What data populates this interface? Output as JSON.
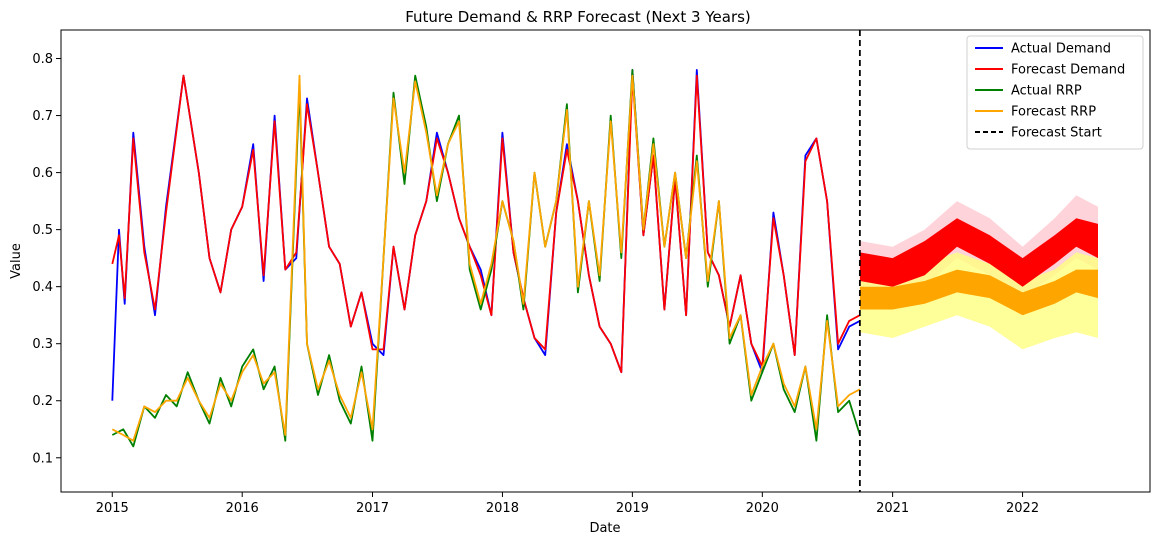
{
  "chart_data": {
    "type": "line",
    "title": "Future Demand & RRP Forecast (Next 3 Years)",
    "xlabel": "Date",
    "ylabel": "Value",
    "xlim": [
      "2014-08-10",
      "2022-12-25"
    ],
    "ylim": [
      0.04,
      0.85
    ],
    "x_ticks": [
      "2015",
      "2016",
      "2017",
      "2018",
      "2019",
      "2020",
      "2021",
      "2022"
    ],
    "y_ticks": [
      "0.1",
      "0.2",
      "0.3",
      "0.4",
      "0.5",
      "0.6",
      "0.7",
      "0.8"
    ],
    "grid": false,
    "legend_position": "top-right",
    "forecast_start": "2020-10-01",
    "colors": {
      "actual_demand": "#0000ff",
      "forecast_demand": "#ff0000",
      "actual_rrp": "#008000",
      "forecast_rrp": "#ffa500",
      "forecast_start": "#000000",
      "demand_band": "#ffc0cb",
      "rrp_band": "#ffff80"
    },
    "series": [
      {
        "name": "Actual Demand",
        "color": "#0000ff",
        "x": [
          "2015-01-01",
          "2015-01-20",
          "2015-02-05",
          "2015-03-01",
          "2015-04-01",
          "2015-05-01",
          "2015-06-01",
          "2015-07-20",
          "2015-09-01",
          "2015-10-01",
          "2015-11-01",
          "2015-12-01",
          "2016-01-01",
          "2016-02-01",
          "2016-03-01",
          "2016-04-01",
          "2016-05-01",
          "2016-06-01",
          "2016-07-01",
          "2016-08-01",
          "2016-09-01",
          "2016-10-01",
          "2016-11-01",
          "2016-12-01",
          "2017-01-01",
          "2017-02-01",
          "2017-03-01",
          "2017-04-01",
          "2017-05-01",
          "2017-06-01",
          "2017-07-01",
          "2017-08-01",
          "2017-09-01",
          "2017-10-01",
          "2017-11-01",
          "2017-12-01",
          "2018-01-01",
          "2018-02-01",
          "2018-03-01",
          "2018-04-01",
          "2018-05-01",
          "2018-06-01",
          "2018-07-01",
          "2018-08-01",
          "2018-09-01",
          "2018-10-01",
          "2018-11-01",
          "2018-12-01",
          "2019-01-01",
          "2019-02-01",
          "2019-03-01",
          "2019-04-01",
          "2019-05-01",
          "2019-06-01",
          "2019-07-01",
          "2019-08-01",
          "2019-09-01",
          "2019-10-01",
          "2019-11-01",
          "2019-12-01",
          "2020-01-01",
          "2020-02-01",
          "2020-03-01",
          "2020-04-01",
          "2020-05-01",
          "2020-06-01",
          "2020-07-01",
          "2020-08-01",
          "2020-09-01",
          "2020-10-01"
        ],
        "values": [
          0.2,
          0.5,
          0.37,
          0.67,
          0.47,
          0.35,
          0.54,
          0.77,
          0.6,
          0.45,
          0.39,
          0.5,
          0.54,
          0.65,
          0.41,
          0.7,
          0.43,
          0.45,
          0.73,
          0.6,
          0.47,
          0.44,
          0.33,
          0.39,
          0.3,
          0.28,
          0.47,
          0.36,
          0.49,
          0.55,
          0.67,
          0.6,
          0.52,
          0.47,
          0.43,
          0.35,
          0.67,
          0.46,
          0.38,
          0.31,
          0.28,
          0.53,
          0.65,
          0.55,
          0.42,
          0.33,
          0.3,
          0.25,
          0.78,
          0.49,
          0.63,
          0.36,
          0.59,
          0.35,
          0.78,
          0.46,
          0.42,
          0.33,
          0.42,
          0.3,
          0.25,
          0.53,
          0.42,
          0.28,
          0.63,
          0.66,
          0.55,
          0.29,
          0.33,
          0.34
        ]
      },
      {
        "name": "Forecast Demand",
        "color": "#ff0000",
        "x": [
          "2015-01-01",
          "2015-01-20",
          "2015-02-05",
          "2015-03-01",
          "2015-04-01",
          "2015-05-01",
          "2015-06-01",
          "2015-07-20",
          "2015-09-01",
          "2015-10-01",
          "2015-11-01",
          "2015-12-01",
          "2016-01-01",
          "2016-02-01",
          "2016-03-01",
          "2016-04-01",
          "2016-05-01",
          "2016-06-01",
          "2016-07-01",
          "2016-08-01",
          "2016-09-01",
          "2016-10-01",
          "2016-11-01",
          "2016-12-01",
          "2017-01-01",
          "2017-02-01",
          "2017-03-01",
          "2017-04-01",
          "2017-05-01",
          "2017-06-01",
          "2017-07-01",
          "2017-08-01",
          "2017-09-01",
          "2017-10-01",
          "2017-11-01",
          "2017-12-01",
          "2018-01-01",
          "2018-02-01",
          "2018-03-01",
          "2018-04-01",
          "2018-05-01",
          "2018-06-01",
          "2018-07-01",
          "2018-08-01",
          "2018-09-01",
          "2018-10-01",
          "2018-11-01",
          "2018-12-01",
          "2019-01-01",
          "2019-02-01",
          "2019-03-01",
          "2019-04-01",
          "2019-05-01",
          "2019-06-01",
          "2019-07-01",
          "2019-08-01",
          "2019-09-01",
          "2019-10-01",
          "2019-11-01",
          "2019-12-01",
          "2020-01-01",
          "2020-02-01",
          "2020-03-01",
          "2020-04-01",
          "2020-05-01",
          "2020-06-01",
          "2020-07-01",
          "2020-08-01",
          "2020-09-01",
          "2020-10-01"
        ],
        "values": [
          0.44,
          0.49,
          0.38,
          0.66,
          0.46,
          0.36,
          0.53,
          0.77,
          0.6,
          0.45,
          0.39,
          0.5,
          0.54,
          0.64,
          0.42,
          0.69,
          0.43,
          0.46,
          0.72,
          0.6,
          0.47,
          0.44,
          0.33,
          0.39,
          0.29,
          0.29,
          0.47,
          0.36,
          0.49,
          0.55,
          0.66,
          0.6,
          0.52,
          0.47,
          0.42,
          0.35,
          0.66,
          0.46,
          0.38,
          0.31,
          0.29,
          0.53,
          0.64,
          0.55,
          0.42,
          0.33,
          0.3,
          0.25,
          0.77,
          0.49,
          0.63,
          0.36,
          0.59,
          0.35,
          0.77,
          0.46,
          0.42,
          0.33,
          0.42,
          0.3,
          0.26,
          0.52,
          0.42,
          0.28,
          0.62,
          0.66,
          0.55,
          0.3,
          0.34,
          0.35
        ]
      },
      {
        "name": "Actual RRP",
        "color": "#008000",
        "x": [
          "2015-01-01",
          "2015-02-01",
          "2015-03-01",
          "2015-04-01",
          "2015-05-01",
          "2015-06-01",
          "2015-07-01",
          "2015-08-01",
          "2015-09-01",
          "2015-10-01",
          "2015-11-01",
          "2015-12-01",
          "2016-01-01",
          "2016-02-01",
          "2016-03-01",
          "2016-04-01",
          "2016-05-01",
          "2016-06-10",
          "2016-07-01",
          "2016-08-01",
          "2016-09-01",
          "2016-10-01",
          "2016-11-01",
          "2016-12-01",
          "2017-01-01",
          "2017-02-01",
          "2017-03-01",
          "2017-04-01",
          "2017-05-01",
          "2017-06-01",
          "2017-07-01",
          "2017-08-01",
          "2017-09-01",
          "2017-10-01",
          "2017-11-01",
          "2017-12-01",
          "2018-01-01",
          "2018-02-01",
          "2018-03-01",
          "2018-04-01",
          "2018-05-01",
          "2018-06-01",
          "2018-07-01",
          "2018-08-01",
          "2018-09-01",
          "2018-10-01",
          "2018-11-01",
          "2018-12-01",
          "2019-01-01",
          "2019-02-01",
          "2019-03-01",
          "2019-04-01",
          "2019-05-01",
          "2019-06-01",
          "2019-07-01",
          "2019-08-01",
          "2019-09-01",
          "2019-10-01",
          "2019-11-01",
          "2019-12-01",
          "2020-01-01",
          "2020-02-01",
          "2020-03-01",
          "2020-04-01",
          "2020-05-01",
          "2020-06-01",
          "2020-07-01",
          "2020-08-01",
          "2020-09-01",
          "2020-10-01"
        ],
        "values": [
          0.14,
          0.15,
          0.12,
          0.19,
          0.17,
          0.21,
          0.19,
          0.25,
          0.2,
          0.16,
          0.24,
          0.19,
          0.26,
          0.29,
          0.22,
          0.26,
          0.13,
          0.75,
          0.3,
          0.21,
          0.28,
          0.2,
          0.16,
          0.26,
          0.13,
          0.45,
          0.74,
          0.58,
          0.77,
          0.68,
          0.55,
          0.65,
          0.7,
          0.43,
          0.36,
          0.43,
          0.55,
          0.48,
          0.36,
          0.6,
          0.47,
          0.55,
          0.72,
          0.39,
          0.55,
          0.41,
          0.7,
          0.45,
          0.78,
          0.5,
          0.66,
          0.47,
          0.6,
          0.45,
          0.63,
          0.4,
          0.55,
          0.3,
          0.35,
          0.2,
          0.25,
          0.3,
          0.22,
          0.18,
          0.26,
          0.13,
          0.35,
          0.18,
          0.2,
          0.14
        ]
      },
      {
        "name": "Forecast RRP",
        "color": "#ffa500",
        "x": [
          "2015-01-01",
          "2015-02-01",
          "2015-03-01",
          "2015-04-01",
          "2015-05-01",
          "2015-06-01",
          "2015-07-01",
          "2015-08-01",
          "2015-09-01",
          "2015-10-01",
          "2015-11-01",
          "2015-12-01",
          "2016-01-01",
          "2016-02-01",
          "2016-03-01",
          "2016-04-01",
          "2016-05-01",
          "2016-06-10",
          "2016-07-01",
          "2016-08-01",
          "2016-09-01",
          "2016-10-01",
          "2016-11-01",
          "2016-12-01",
          "2017-01-01",
          "2017-02-01",
          "2017-03-01",
          "2017-04-01",
          "2017-05-01",
          "2017-06-01",
          "2017-07-01",
          "2017-08-01",
          "2017-09-01",
          "2017-10-01",
          "2017-11-01",
          "2017-12-01",
          "2018-01-01",
          "2018-02-01",
          "2018-03-01",
          "2018-04-01",
          "2018-05-01",
          "2018-06-01",
          "2018-07-01",
          "2018-08-01",
          "2018-09-01",
          "2018-10-01",
          "2018-11-01",
          "2018-12-01",
          "2019-01-01",
          "2019-02-01",
          "2019-03-01",
          "2019-04-01",
          "2019-05-01",
          "2019-06-01",
          "2019-07-01",
          "2019-08-01",
          "2019-09-01",
          "2019-10-01",
          "2019-11-01",
          "2019-12-01",
          "2020-01-01",
          "2020-02-01",
          "2020-03-01",
          "2020-04-01",
          "2020-05-01",
          "2020-06-01",
          "2020-07-01",
          "2020-08-01",
          "2020-09-01",
          "2020-10-01"
        ],
        "values": [
          0.15,
          0.14,
          0.13,
          0.19,
          0.18,
          0.2,
          0.2,
          0.24,
          0.2,
          0.17,
          0.23,
          0.2,
          0.25,
          0.28,
          0.23,
          0.25,
          0.14,
          0.77,
          0.3,
          0.22,
          0.27,
          0.21,
          0.17,
          0.25,
          0.15,
          0.45,
          0.73,
          0.6,
          0.76,
          0.67,
          0.56,
          0.65,
          0.69,
          0.44,
          0.37,
          0.44,
          0.55,
          0.48,
          0.37,
          0.6,
          0.47,
          0.55,
          0.71,
          0.4,
          0.55,
          0.42,
          0.69,
          0.46,
          0.77,
          0.5,
          0.65,
          0.47,
          0.6,
          0.45,
          0.62,
          0.41,
          0.55,
          0.31,
          0.35,
          0.21,
          0.26,
          0.3,
          0.23,
          0.19,
          0.26,
          0.15,
          0.34,
          0.19,
          0.21,
          0.22
        ]
      }
    ],
    "future_forecast": {
      "demand": {
        "x": [
          "2020-10-01",
          "2021-01-01",
          "2021-04-01",
          "2021-07-01",
          "2021-10-01",
          "2022-01-01",
          "2022-04-01",
          "2022-06-01",
          "2022-08-01"
        ],
        "lower": [
          0.41,
          0.4,
          0.42,
          0.47,
          0.44,
          0.4,
          0.44,
          0.47,
          0.45
        ],
        "upper": [
          0.46,
          0.45,
          0.48,
          0.52,
          0.49,
          0.45,
          0.49,
          0.52,
          0.51
        ],
        "band_lower": [
          0.39,
          0.38,
          0.4,
          0.45,
          0.42,
          0.38,
          0.42,
          0.45,
          0.43
        ],
        "band_upper": [
          0.48,
          0.47,
          0.5,
          0.55,
          0.52,
          0.47,
          0.52,
          0.56,
          0.54
        ]
      },
      "rrp": {
        "x": [
          "2020-10-01",
          "2021-01-01",
          "2021-04-01",
          "2021-07-01",
          "2021-10-01",
          "2022-01-01",
          "2022-04-01",
          "2022-06-01",
          "2022-08-01"
        ],
        "lower": [
          0.36,
          0.36,
          0.37,
          0.39,
          0.38,
          0.35,
          0.37,
          0.39,
          0.38
        ],
        "upper": [
          0.4,
          0.4,
          0.41,
          0.43,
          0.42,
          0.39,
          0.41,
          0.43,
          0.43
        ],
        "band_lower": [
          0.32,
          0.31,
          0.33,
          0.35,
          0.33,
          0.29,
          0.31,
          0.32,
          0.31
        ],
        "band_upper": [
          0.42,
          0.42,
          0.44,
          0.46,
          0.44,
          0.41,
          0.43,
          0.46,
          0.45
        ]
      }
    }
  },
  "legend": {
    "items": [
      {
        "label": "Actual Demand",
        "color": "#0000ff",
        "style": "solid"
      },
      {
        "label": "Forecast Demand",
        "color": "#ff0000",
        "style": "solid"
      },
      {
        "label": "Actual RRP",
        "color": "#008000",
        "style": "solid"
      },
      {
        "label": "Forecast RRP",
        "color": "#ffa500",
        "style": "solid"
      },
      {
        "label": "Forecast Start",
        "color": "#000000",
        "style": "dashed"
      }
    ]
  }
}
